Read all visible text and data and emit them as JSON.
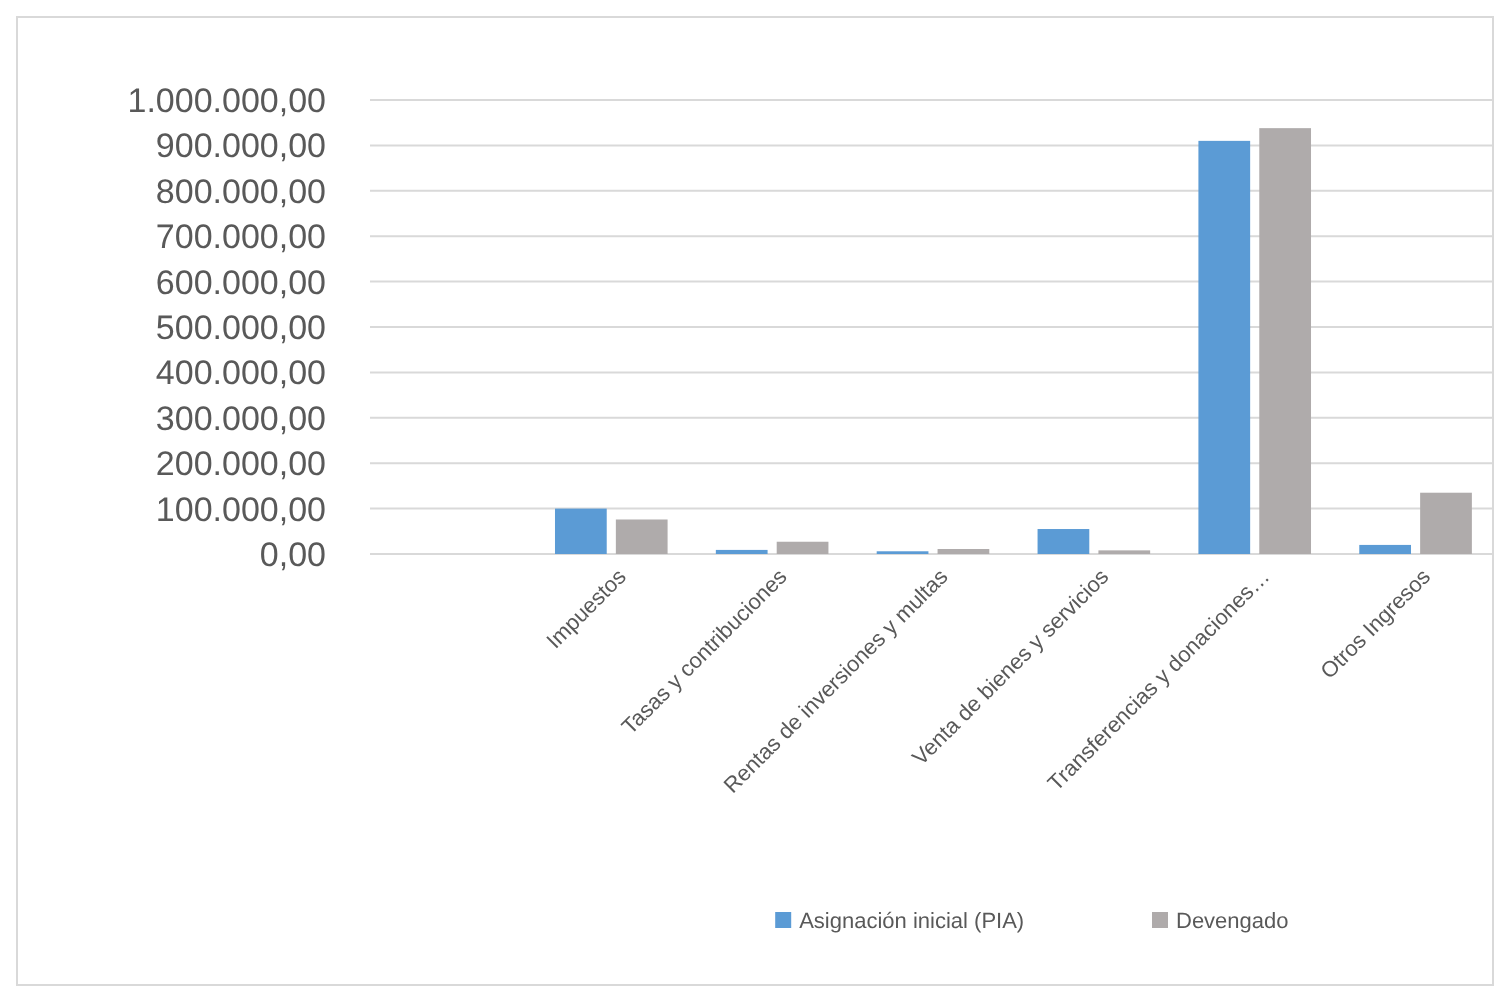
{
  "chart_data": {
    "type": "bar",
    "categories": [
      null,
      "Impuestos",
      "Tasas y contribuciones",
      "Rentas de inversiones y multas",
      "Venta de bienes y servicios",
      "Transferencias y donaciones…",
      "Otros Ingresos"
    ],
    "series": [
      {
        "name": "Asignación inicial (PIA)",
        "color": "#5b9bd5",
        "values": [
          null,
          100000,
          9000,
          6000,
          55000,
          910000,
          20000
        ]
      },
      {
        "name": "Devengado",
        "color": "#afabab",
        "values": [
          null,
          76000,
          27000,
          11000,
          8000,
          938000,
          135000
        ]
      }
    ],
    "ylim": [
      0,
      1000000
    ],
    "yticks": [
      {
        "value": 0,
        "label": "0,00"
      },
      {
        "value": 100000,
        "label": "100.000,00"
      },
      {
        "value": 200000,
        "label": "200.000,00"
      },
      {
        "value": 300000,
        "label": "300.000,00"
      },
      {
        "value": 400000,
        "label": "400.000,00"
      },
      {
        "value": 500000,
        "label": "500.000,00"
      },
      {
        "value": 600000,
        "label": "600.000,00"
      },
      {
        "value": 700000,
        "label": "700.000,00"
      },
      {
        "value": 800000,
        "label": "800.000,00"
      },
      {
        "value": 900000,
        "label": "900.000,00"
      },
      {
        "value": 1000000,
        "label": "1.000.000,00"
      }
    ],
    "grid": "y",
    "legend": "bottom"
  }
}
